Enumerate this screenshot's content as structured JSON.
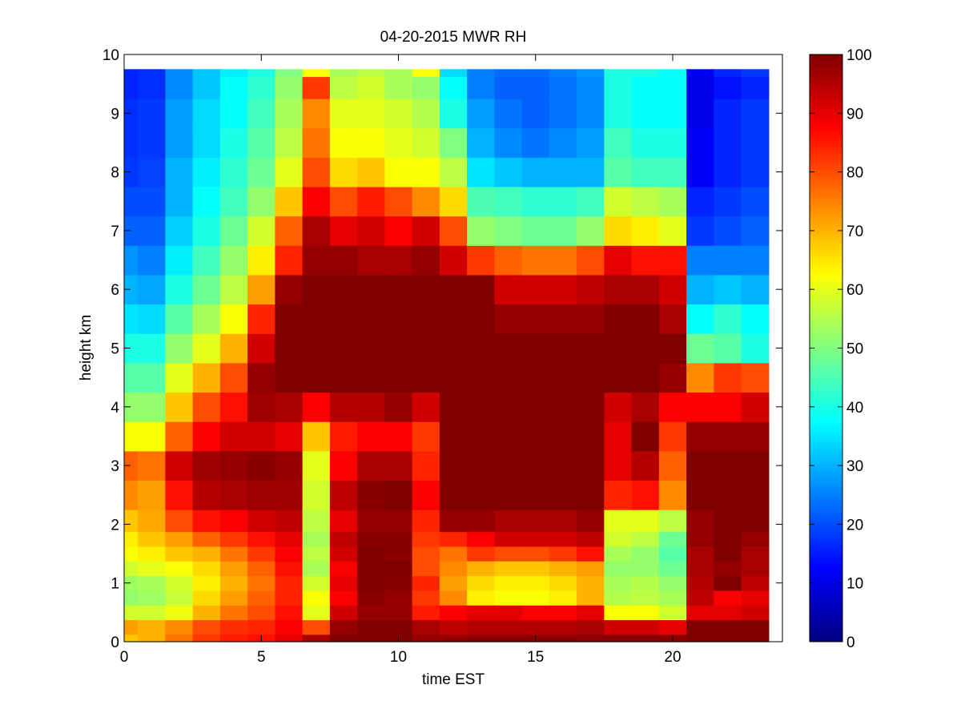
{
  "chart_data": {
    "type": "heatmap",
    "title": "04-20-2015 MWR RH",
    "xlabel": "time EST",
    "ylabel": "height km",
    "xlim": [
      0,
      24
    ],
    "ylim": [
      0,
      10
    ],
    "x_ticks": [
      0,
      5,
      10,
      15,
      20
    ],
    "y_ticks": [
      0,
      1,
      2,
      3,
      4,
      5,
      6,
      7,
      8,
      9,
      10
    ],
    "colorbar": {
      "colormap": "jet",
      "clim": [
        0,
        100
      ],
      "ticks": [
        0,
        10,
        20,
        30,
        40,
        50,
        60,
        70,
        80,
        90,
        100
      ]
    },
    "grid": false,
    "value_units": "RH (%)",
    "hours": [
      0,
      1,
      2,
      3,
      4,
      5,
      6,
      7,
      8,
      9,
      10,
      11,
      12,
      13,
      14,
      15,
      16,
      17,
      18,
      19,
      20,
      21,
      22,
      23
    ],
    "height_levels_km": [
      0.0,
      0.25,
      0.5,
      0.75,
      1.0,
      1.25,
      1.5,
      1.75,
      2.0,
      2.5,
      3.0,
      3.5,
      4.0,
      4.5,
      5.0,
      5.5,
      6.0,
      6.5,
      7.0,
      7.5,
      8.0,
      8.5,
      9.0,
      9.5,
      9.75
    ],
    "rh_profiles": [
      [
        68,
        72,
        58,
        52,
        53,
        58,
        62,
        64,
        68,
        74,
        78,
        62,
        52,
        46,
        40,
        35,
        30,
        27,
        22,
        20,
        18,
        17,
        17,
        16,
        16
      ],
      [
        70,
        70,
        58,
        53,
        54,
        60,
        64,
        68,
        71,
        72,
        76,
        62,
        52,
        46,
        40,
        34,
        29,
        25,
        22,
        20,
        19,
        18,
        18,
        17,
        17
      ],
      [
        76,
        74,
        61,
        57,
        58,
        62,
        68,
        72,
        80,
        86,
        92,
        78,
        68,
        60,
        52,
        46,
        40,
        36,
        33,
        30,
        30,
        28,
        28,
        26,
        26
      ],
      [
        82,
        80,
        70,
        66,
        64,
        66,
        70,
        78,
        86,
        95,
        97,
        88,
        80,
        70,
        60,
        54,
        48,
        44,
        40,
        38,
        36,
        34,
        34,
        32,
        32
      ],
      [
        85,
        83,
        76,
        72,
        70,
        72,
        76,
        82,
        88,
        96,
        98,
        92,
        86,
        80,
        70,
        62,
        56,
        52,
        48,
        44,
        42,
        40,
        38,
        38,
        36
      ],
      [
        86,
        84,
        80,
        78,
        76,
        78,
        82,
        86,
        92,
        97,
        99,
        92,
        97,
        98,
        92,
        84,
        72,
        64,
        58,
        52,
        48,
        46,
        44,
        42,
        40
      ],
      [
        90,
        88,
        86,
        84,
        84,
        86,
        88,
        90,
        94,
        97,
        98,
        90,
        96,
        100,
        100,
        100,
        98,
        84,
        78,
        68,
        60,
        56,
        54,
        52,
        50
      ],
      [
        96,
        80,
        60,
        62,
        58,
        54,
        56,
        54,
        56,
        58,
        60,
        68,
        88,
        100,
        100,
        100,
        100,
        98,
        96,
        88,
        80,
        76,
        74,
        82,
        62
      ],
      [
        100,
        98,
        92,
        88,
        90,
        88,
        92,
        94,
        90,
        94,
        88,
        85,
        95,
        100,
        100,
        100,
        100,
        98,
        90,
        80,
        66,
        62,
        60,
        56,
        54
      ],
      [
        100,
        100,
        98,
        99,
        100,
        100,
        100,
        99,
        98,
        99,
        96,
        88,
        95,
        100,
        100,
        100,
        100,
        96,
        92,
        85,
        68,
        62,
        60,
        58,
        56
      ],
      [
        100,
        100,
        98,
        98,
        99,
        100,
        99,
        99,
        98,
        100,
        96,
        88,
        98,
        100,
        100,
        100,
        100,
        96,
        88,
        80,
        62,
        60,
        58,
        54,
        54
      ],
      [
        98,
        96,
        85,
        82,
        84,
        80,
        80,
        82,
        84,
        88,
        84,
        82,
        92,
        100,
        100,
        100,
        100,
        98,
        92,
        74,
        62,
        58,
        55,
        52,
        62
      ],
      [
        98,
        94,
        88,
        74,
        72,
        74,
        76,
        84,
        98,
        100,
        100,
        100,
        100,
        100,
        100,
        100,
        100,
        92,
        80,
        66,
        56,
        50,
        40,
        38,
        34
      ],
      [
        99,
        95,
        90,
        64,
        66,
        70,
        82,
        88,
        98,
        100,
        100,
        100,
        100,
        100,
        100,
        100,
        100,
        82,
        52,
        45,
        35,
        30,
        28,
        25,
        25
      ],
      [
        99,
        95,
        90,
        62,
        64,
        68,
        80,
        92,
        96,
        100,
        100,
        100,
        100,
        100,
        100,
        98,
        92,
        78,
        50,
        44,
        32,
        26,
        24,
        22,
        23
      ],
      [
        99,
        95,
        88,
        62,
        64,
        68,
        80,
        92,
        96,
        100,
        100,
        100,
        100,
        100,
        100,
        98,
        92,
        76,
        48,
        42,
        30,
        24,
        22,
        22,
        23
      ],
      [
        99,
        95,
        88,
        64,
        66,
        70,
        82,
        92,
        96,
        100,
        100,
        100,
        100,
        100,
        100,
        98,
        92,
        76,
        48,
        42,
        30,
        26,
        24,
        24,
        25
      ],
      [
        99,
        96,
        90,
        70,
        70,
        72,
        86,
        94,
        98,
        100,
        100,
        100,
        100,
        100,
        100,
        98,
        94,
        80,
        52,
        44,
        30,
        28,
        26,
        26,
        27
      ],
      [
        99,
        92,
        62,
        55,
        54,
        52,
        54,
        58,
        60,
        84,
        90,
        90,
        92,
        100,
        100,
        100,
        96,
        90,
        66,
        58,
        46,
        44,
        40,
        40,
        40
      ],
      [
        99,
        92,
        62,
        56,
        55,
        52,
        52,
        56,
        60,
        86,
        95,
        100,
        96,
        100,
        100,
        100,
        96,
        86,
        64,
        56,
        44,
        40,
        38,
        38,
        40
      ],
      [
        99,
        90,
        58,
        54,
        52,
        48,
        46,
        48,
        56,
        74,
        78,
        82,
        88,
        98,
        100,
        96,
        92,
        86,
        60,
        54,
        44,
        40,
        38,
        38,
        38
      ],
      [
        100,
        100,
        90,
        94,
        95,
        96,
        96,
        98,
        98,
        100,
        100,
        98,
        88,
        74,
        48,
        38,
        30,
        25,
        18,
        16,
        12,
        12,
        10,
        10,
        12
      ],
      [
        100,
        100,
        90,
        88,
        100,
        98,
        100,
        100,
        100,
        100,
        100,
        98,
        88,
        82,
        46,
        42,
        32,
        25,
        20,
        18,
        16,
        16,
        16,
        14,
        16
      ],
      [
        100,
        100,
        92,
        90,
        94,
        96,
        96,
        98,
        100,
        100,
        100,
        98,
        92,
        80,
        40,
        38,
        30,
        25,
        22,
        20,
        18,
        18,
        18,
        16,
        18
      ]
    ]
  }
}
